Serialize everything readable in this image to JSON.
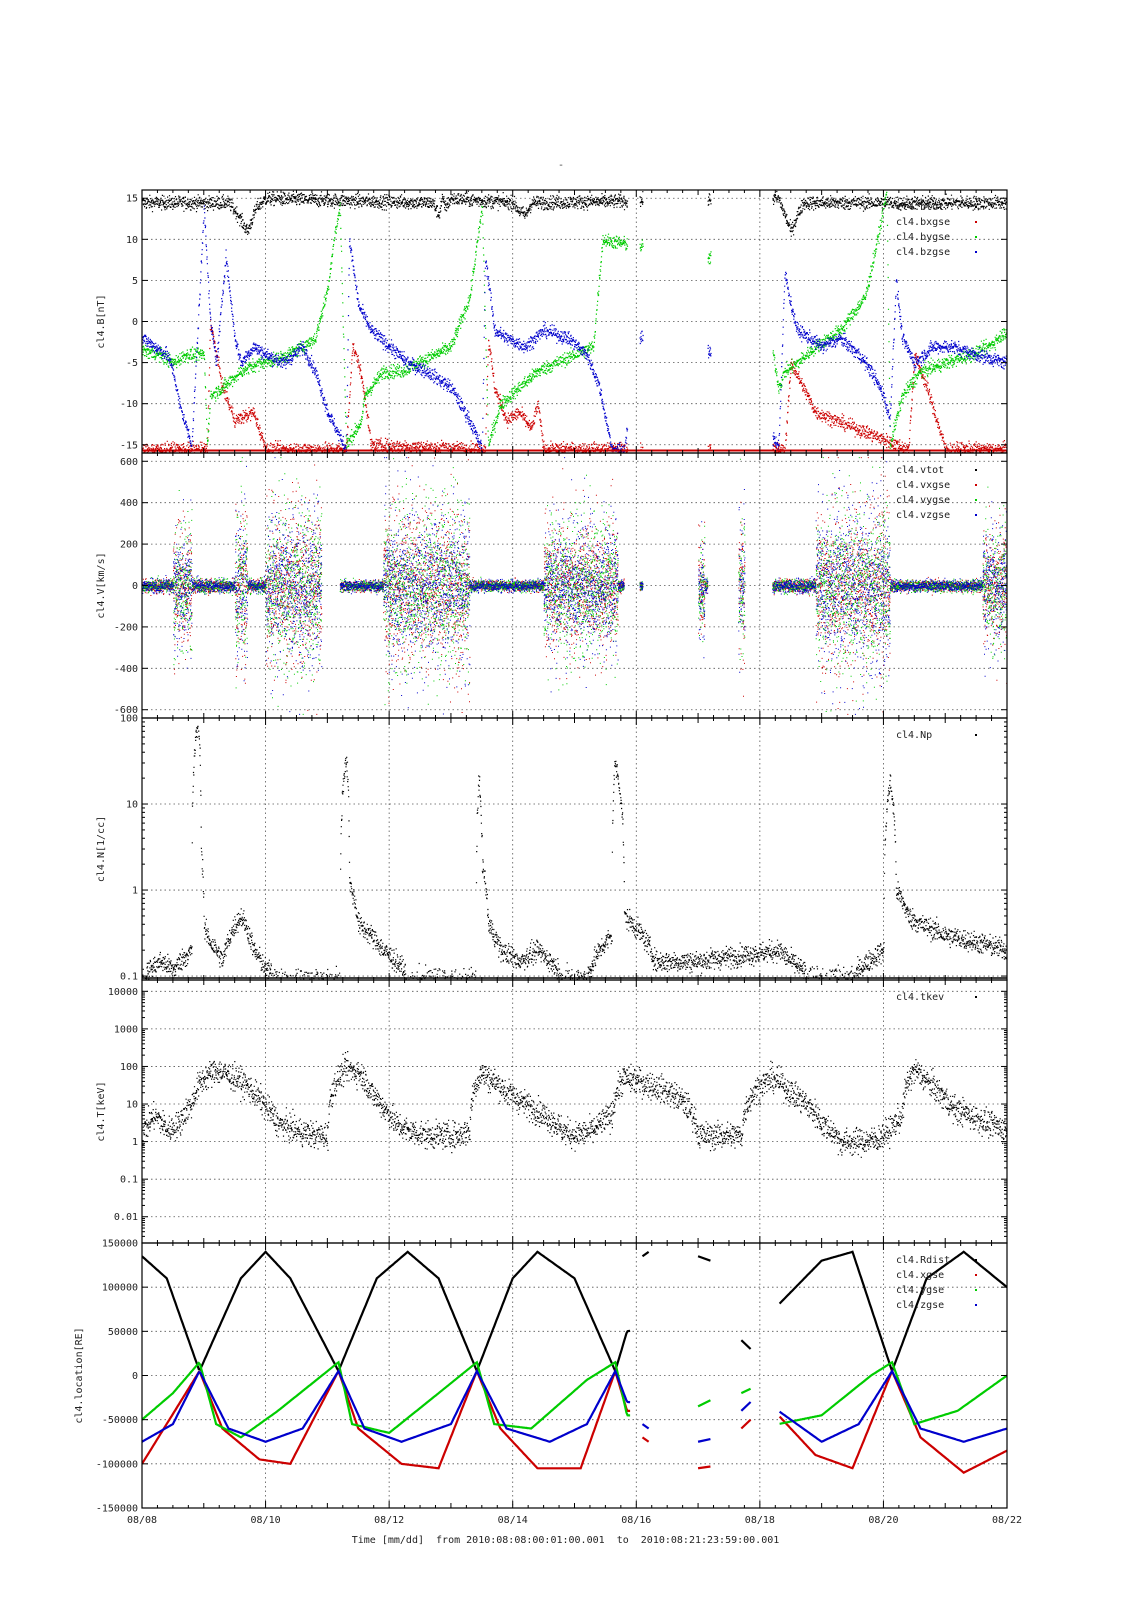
{
  "top_mark": "-",
  "x_axis": {
    "ticks": [
      "08/08",
      "08/10",
      "08/12",
      "08/14",
      "08/16",
      "08/18",
      "08/20",
      "08/22"
    ],
    "title_prefix": "Time [mm/dd]",
    "title_from_label": "from",
    "from": "2010:08:08:00:01:00.001",
    "title_to_label": "to",
    "to": "2010:08:21:23:59:00.001",
    "range_days": [
      0,
      14
    ]
  },
  "colors": {
    "black": "#000000",
    "red": "#cc0000",
    "green": "#00cc00",
    "blue": "#0000cc",
    "grid": "#555555"
  },
  "chart_data": [
    {
      "type": "scatter",
      "ylabel": "cl4.B[nT]",
      "ylim": [
        -16,
        16
      ],
      "scale": "linear",
      "yticks": [
        15,
        10,
        5,
        0,
        -5,
        -10,
        -15
      ],
      "ytick_labels": [
        "15",
        "10",
        "5",
        "0",
        "-5",
        "-10",
        "-15"
      ],
      "legend": [
        "cl4.btot",
        "cl4.bxgse",
        "cl4.bygse",
        "cl4.bzgse"
      ],
      "legend_position": "top-right",
      "grid": true,
      "data_gaps": [
        [
          7.85,
          8.05
        ],
        [
          8.35,
          9.15
        ],
        [
          9.45,
          10.15
        ]
      ],
      "series": [
        {
          "color": "black",
          "x": [
            1.4,
            1.55,
            1.7,
            1.85,
            2.0,
            4.7,
            4.8,
            4.85,
            4.9,
            5.0,
            6.0,
            6.1,
            6.2,
            6.3,
            10.3,
            10.4,
            10.5,
            10.6,
            10.7
          ],
          "y": [
            14.5,
            13,
            11,
            14,
            15,
            14.5,
            13,
            15,
            14,
            15,
            14.5,
            13.5,
            13,
            14.5,
            15,
            13,
            11,
            13,
            14.5
          ]
        },
        {
          "color": "red",
          "x": [
            0,
            1.05,
            1.1,
            1.3,
            1.5,
            1.8,
            2.0,
            3.3,
            3.4,
            3.5,
            3.6,
            3.7,
            5.55,
            5.6,
            5.7,
            5.9,
            6.1,
            6.3,
            6.4,
            6.5,
            10.4,
            10.5,
            10.7,
            10.9,
            12.4,
            12.5,
            12.7,
            13,
            14
          ],
          "y": [
            -15.5,
            -15.5,
            0,
            -8,
            -12,
            -11,
            -15.5,
            -15.5,
            -3,
            -5,
            -9,
            -15,
            -15.5,
            -2,
            -8,
            -12,
            -11,
            -13,
            -10,
            -15.5,
            -15.5,
            -5,
            -8,
            -11,
            -15.5,
            -4,
            -8,
            -15.5,
            -15.5
          ]
        },
        {
          "color": "green",
          "x": [
            0,
            0.3,
            0.5,
            0.7,
            1.0,
            1.05,
            1.1,
            1.3,
            1.6,
            1.9,
            2.2,
            2.6,
            2.8,
            3.0,
            3.1,
            3.2,
            3.3,
            3.55,
            3.6,
            3.7,
            3.9,
            4.2,
            4.6,
            5.0,
            5.1,
            5.3,
            5.5,
            5.6,
            5.8,
            6.1,
            6.4,
            6.7,
            7.0,
            7.3,
            7.45,
            9.7,
            9.8,
            10.3,
            10.4,
            10.6,
            10.9,
            11.3,
            11.7,
            11.9,
            12.05,
            12.1,
            12.3,
            12.6,
            13.0,
            13.4,
            13.7,
            14.0
          ],
          "y": [
            -3.5,
            -4,
            -5,
            -4,
            -4,
            -15,
            -9,
            -8,
            -6,
            -5,
            -4.5,
            -3,
            -2,
            4,
            10,
            14,
            -15,
            -12,
            -9,
            -8,
            -6,
            -6,
            -4.5,
            -3,
            -1,
            3,
            14,
            -15,
            -10,
            -8,
            -6,
            -5,
            -4,
            -3,
            10,
            7,
            15,
            -8,
            -6,
            -5,
            -3,
            -1,
            3,
            10,
            16,
            -15,
            -9,
            -6,
            -5,
            -4,
            -3,
            -1
          ]
        },
        {
          "color": "blue",
          "x": [
            0,
            0.2,
            0.4,
            0.5,
            0.6,
            0.8,
            1.0,
            1.1,
            1.2,
            1.35,
            1.5,
            1.6,
            1.8,
            2.0,
            2.3,
            2.6,
            2.8,
            3.0,
            3.3,
            3.35,
            3.5,
            3.7,
            4.0,
            4.3,
            4.6,
            5.0,
            5.3,
            5.5,
            5.55,
            5.7,
            5.9,
            6.2,
            6.5,
            6.9,
            7.2,
            7.4,
            7.6,
            7.8,
            8.05,
            8.1,
            8.15,
            9.0,
            9.1,
            9.2,
            10.3,
            10.4,
            10.5,
            10.6,
            10.8,
            11.0,
            11.3,
            11.6,
            11.8,
            12.0,
            12.1,
            12.2,
            12.3,
            12.5,
            12.8,
            13.1,
            13.5,
            14.0
          ],
          "y": [
            -2,
            -3,
            -4,
            -6,
            -10,
            -15,
            14,
            0,
            -5,
            8,
            -2,
            -5,
            -3,
            -4,
            -5,
            -3,
            -6,
            -11,
            -15.5,
            10,
            2,
            -1,
            -3,
            -5,
            -6,
            -8,
            -12,
            -15.5,
            8,
            -1,
            -2,
            -3,
            -1,
            -2,
            -4,
            -8,
            -15.5,
            -15.5,
            -2,
            -2,
            -3,
            -2,
            -3,
            -4,
            -15,
            6,
            2,
            -1,
            -2,
            -3,
            -2,
            -4,
            -6,
            -9,
            -12,
            5,
            -2,
            -5,
            -3,
            -3,
            -4,
            -5
          ]
        }
      ]
    },
    {
      "type": "scatter",
      "ylabel": "cl4.V[km/s]",
      "ylim": [
        -640,
        640
      ],
      "scale": "linear",
      "yticks": [
        600,
        400,
        200,
        0,
        -200,
        -400,
        -600
      ],
      "ytick_labels": [
        "600",
        "400",
        "200",
        "0",
        "-200",
        "-400",
        "-600"
      ],
      "legend": [
        "cl4.vtot",
        "cl4.vxgse",
        "cl4.vygse",
        "cl4.vzgse"
      ],
      "legend_position": "top-right",
      "grid": true,
      "data_gaps": [
        [
          7.85,
          8.05
        ],
        [
          8.35,
          9.15
        ],
        [
          9.45,
          10.15
        ]
      ],
      "note": "Blue core band around 0 with broad multi-colour scatter bursts.",
      "intervals": [
        {
          "x0": 0.0,
          "x1": 0.9,
          "core": 60,
          "burst": 450,
          "burst_windows": [
            [
              0.5,
              0.8
            ]
          ]
        },
        {
          "x0": 0.9,
          "x1": 2.9,
          "core": 60,
          "burst": 600,
          "burst_windows": [
            [
              1.5,
              1.7
            ],
            [
              2.0,
              2.9
            ]
          ]
        },
        {
          "x0": 3.2,
          "x1": 5.5,
          "core": 50,
          "burst": 600,
          "burst_windows": [
            [
              3.9,
              5.3
            ]
          ]
        },
        {
          "x0": 5.5,
          "x1": 7.8,
          "core": 50,
          "burst": 500,
          "burst_windows": [
            [
              6.5,
              7.7
            ]
          ]
        },
        {
          "x0": 8.05,
          "x1": 8.1,
          "core": 40,
          "burst": 80,
          "burst_windows": []
        },
        {
          "x0": 9.0,
          "x1": 9.15,
          "core": 60,
          "burst": 400,
          "burst_windows": [
            [
              9.0,
              9.1
            ]
          ]
        },
        {
          "x0": 9.65,
          "x1": 9.75,
          "core": 60,
          "burst": 550,
          "burst_windows": [
            [
              9.65,
              9.75
            ]
          ]
        },
        {
          "x0": 10.2,
          "x1": 12.2,
          "core": 60,
          "burst": 620,
          "burst_windows": [
            [
              10.9,
              12.1
            ]
          ]
        },
        {
          "x0": 12.2,
          "x1": 14.0,
          "core": 50,
          "burst": 450,
          "burst_windows": [
            [
              13.6,
              14.0
            ]
          ]
        }
      ]
    },
    {
      "type": "scatter",
      "ylabel": "cl4.N[1/cc]",
      "ylim": [
        0.09,
        100
      ],
      "scale": "log",
      "yticks": [
        100,
        10,
        1,
        0.1
      ],
      "ytick_labels": [
        "100",
        "10",
        "1",
        "0.1"
      ],
      "legend": [
        "cl4.Np"
      ],
      "legend_position": "top-right",
      "grid": true,
      "series": [
        {
          "color": "black",
          "x": [
            0,
            0.3,
            0.5,
            0.8,
            0.9,
            0.95,
            1.0,
            1.1,
            1.3,
            1.5,
            1.6,
            1.8,
            2.0,
            2.2,
            2.6,
            3.0,
            3.2,
            3.3,
            3.35,
            3.5,
            3.7,
            3.9,
            4.3,
            4.8,
            5.4,
            5.45,
            5.5,
            5.6,
            5.8,
            6.1,
            6.4,
            6.8,
            7.2,
            7.6,
            7.65,
            7.8,
            8.3,
            9.0,
            10.3,
            10.5,
            10.8,
            11.5,
            12.0,
            12.1,
            12.2,
            12.4,
            12.6,
            13.0,
            13.5,
            14.0
          ],
          "y": [
            0.1,
            0.15,
            0.12,
            0.2,
            90,
            3,
            0.35,
            0.25,
            0.15,
            0.4,
            0.5,
            0.2,
            0.12,
            0.1,
            0.1,
            0.1,
            0.1,
            35,
            1.2,
            0.4,
            0.3,
            0.2,
            0.1,
            0.1,
            0.1,
            18,
            2,
            0.4,
            0.2,
            0.15,
            0.2,
            0.1,
            0.1,
            0.3,
            30,
            0.5,
            0.15,
            0.15,
            0.2,
            0.15,
            0.1,
            0.1,
            0.2,
            18,
            1,
            0.5,
            0.4,
            0.3,
            0.25,
            0.2
          ]
        }
      ]
    },
    {
      "type": "scatter",
      "ylabel": "cl4.T[keV]",
      "ylim": [
        0.002,
        20000
      ],
      "scale": "log",
      "yticks": [
        10000,
        1000,
        100,
        10,
        1,
        0.1,
        0.01
      ],
      "ytick_labels": [
        "10000",
        "1000",
        "100",
        "10",
        "1",
        "0.1",
        "0.01"
      ],
      "legend": [
        "cl4.tkev"
      ],
      "legend_position": "top-right",
      "grid": true,
      "series": [
        {
          "color": "black",
          "x": [
            0,
            0.2,
            0.4,
            0.6,
            0.8,
            1.0,
            1.2,
            1.4,
            1.6,
            1.8,
            2.0,
            2.2,
            2.5,
            2.8,
            3.0,
            3.2,
            3.3,
            3.5,
            3.7,
            3.9,
            4.1,
            4.3,
            4.6,
            4.9,
            5.1,
            5.3,
            5.5,
            5.6,
            5.9,
            6.2,
            6.5,
            6.8,
            7.0,
            7.3,
            7.6,
            7.8,
            9.0,
            9.7,
            10.2,
            10.5,
            10.8,
            11.0,
            11.3,
            11.6,
            11.9,
            12.1,
            12.3,
            12.5,
            12.7,
            12.9,
            13.1,
            13.4,
            13.7,
            14.0
          ],
          "y": [
            1.5,
            5,
            2,
            3,
            10,
            50,
            80,
            60,
            40,
            20,
            8,
            3,
            2,
            1.5,
            1.5,
            60,
            90,
            70,
            20,
            8,
            3,
            2,
            1.5,
            1.5,
            1.5,
            2,
            70,
            50,
            20,
            10,
            5,
            2,
            1.5,
            2,
            5,
            50,
            1.5,
            1.5,
            50,
            20,
            8,
            3,
            1,
            1,
            1.2,
            2,
            5,
            80,
            40,
            20,
            8,
            5,
            3,
            2
          ]
        }
      ]
    },
    {
      "type": "line",
      "ylabel": "cl4.location[RE]",
      "ylim": [
        -150000,
        150000
      ],
      "scale": "linear",
      "yticks": [
        150000,
        100000,
        50000,
        0,
        -50000,
        -100000,
        -150000
      ],
      "ytick_labels": [
        "150000",
        "100000",
        "50000",
        "0",
        "-50000",
        "-100000",
        "-150000"
      ],
      "legend": [
        "cl4.Rdist",
        "cl4.xgse",
        "cl4.ygse",
        "cl4.zgse"
      ],
      "legend_position": "top-right",
      "grid": true,
      "data_gaps": [
        [
          7.9,
          10.3
        ]
      ],
      "perigees": [
        0.93,
        3.18,
        5.42,
        7.66,
        9.9,
        12.14
      ],
      "series": [
        {
          "color": "black",
          "x": [
            0,
            0.4,
            0.93,
            1.6,
            2.0,
            2.4,
            3.18,
            3.8,
            4.3,
            4.8,
            5.42,
            6.0,
            6.4,
            7.0,
            7.66,
            7.85,
            10.3,
            11.0,
            11.5,
            12.14,
            12.7,
            13.3,
            14.0
          ],
          "y": [
            135000,
            110000,
            5000,
            110000,
            140000,
            110000,
            5000,
            110000,
            140000,
            110000,
            5000,
            110000,
            140000,
            110000,
            5000,
            50000,
            80000,
            130000,
            140000,
            5000,
            110000,
            140000,
            100000
          ]
        },
        {
          "color": "red",
          "x": [
            0,
            0.93,
            1.3,
            1.9,
            2.4,
            3.18,
            3.5,
            4.2,
            4.8,
            5.42,
            5.8,
            6.4,
            7.1,
            7.66,
            7.85,
            10.3,
            10.9,
            11.5,
            12.14,
            12.6,
            13.3,
            14.0
          ],
          "y": [
            -100000,
            5000,
            -60000,
            -95000,
            -100000,
            5000,
            -60000,
            -100000,
            -105000,
            5000,
            -60000,
            -105000,
            -105000,
            5000,
            -40000,
            -45000,
            -90000,
            -105000,
            5000,
            -70000,
            -110000,
            -85000
          ]
        },
        {
          "color": "green",
          "x": [
            0,
            0.5,
            0.93,
            1.2,
            1.6,
            2.2,
            3.18,
            3.4,
            4.0,
            4.8,
            5.42,
            5.7,
            6.3,
            7.2,
            7.66,
            7.85,
            10.3,
            11.0,
            11.8,
            12.14,
            12.5,
            13.2,
            14.0
          ],
          "y": [
            -50000,
            -20000,
            15000,
            -55000,
            -70000,
            -40000,
            15000,
            -55000,
            -65000,
            -20000,
            15000,
            -55000,
            -60000,
            -5000,
            15000,
            -45000,
            -55000,
            -45000,
            0,
            15000,
            -55000,
            -40000,
            0
          ]
        },
        {
          "color": "blue",
          "x": [
            0,
            0.5,
            0.93,
            1.4,
            2.0,
            2.6,
            3.18,
            3.6,
            4.2,
            5.0,
            5.42,
            5.9,
            6.6,
            7.2,
            7.66,
            7.85,
            10.3,
            11.0,
            11.6,
            12.14,
            12.6,
            13.3,
            14.0
          ],
          "y": [
            -75000,
            -55000,
            5000,
            -60000,
            -75000,
            -60000,
            5000,
            -60000,
            -75000,
            -55000,
            5000,
            -60000,
            -75000,
            -55000,
            5000,
            -30000,
            -40000,
            -75000,
            -55000,
            5000,
            -60000,
            -75000,
            -60000
          ]
        }
      ]
    }
  ]
}
